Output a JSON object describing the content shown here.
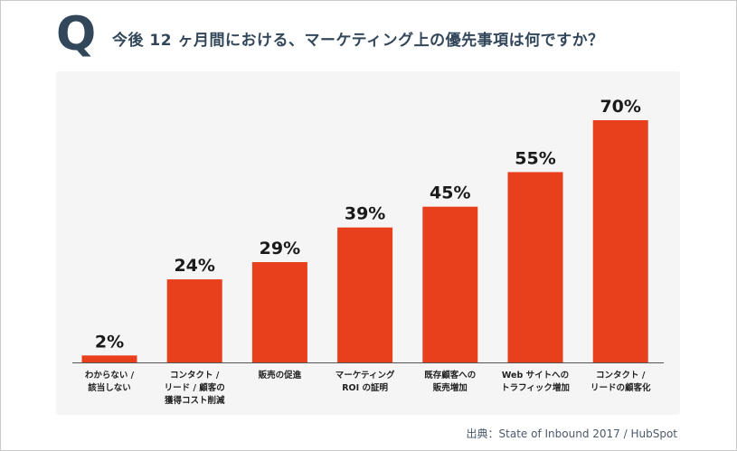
{
  "header": {
    "q_letter": "Q",
    "q_dot": ".",
    "question": "今後 12 ヶ月間における、マーケティング上の優先事項は何ですか？"
  },
  "source": "出典：State of Inbound 2017 / HubSpot",
  "colors": {
    "bar": "#e8401c",
    "panel_bg": "#f5f5f5",
    "title_text": "#33475b",
    "value_text": "#1a1a1a",
    "axis_line": "#555555"
  },
  "chart_data": {
    "type": "bar",
    "categories": [
      [
        "わからない /",
        "該当しない"
      ],
      [
        "コンタクト /",
        "リード / 顧客の",
        "獲得コスト削減"
      ],
      [
        "販売の促進"
      ],
      [
        "マーケティング",
        "ROI の証明"
      ],
      [
        "既存顧客への",
        "販売増加"
      ],
      [
        "Web サイトへの",
        "トラフィック増加"
      ],
      [
        "コンタクト /",
        "リードの顧客化"
      ]
    ],
    "values": [
      2,
      24,
      29,
      39,
      45,
      55,
      70
    ],
    "value_labels": [
      "2%",
      "24%",
      "29%",
      "39%",
      "45%",
      "55%",
      "70%"
    ],
    "ylim": [
      0,
      70
    ],
    "grid": false,
    "legend": "none"
  }
}
